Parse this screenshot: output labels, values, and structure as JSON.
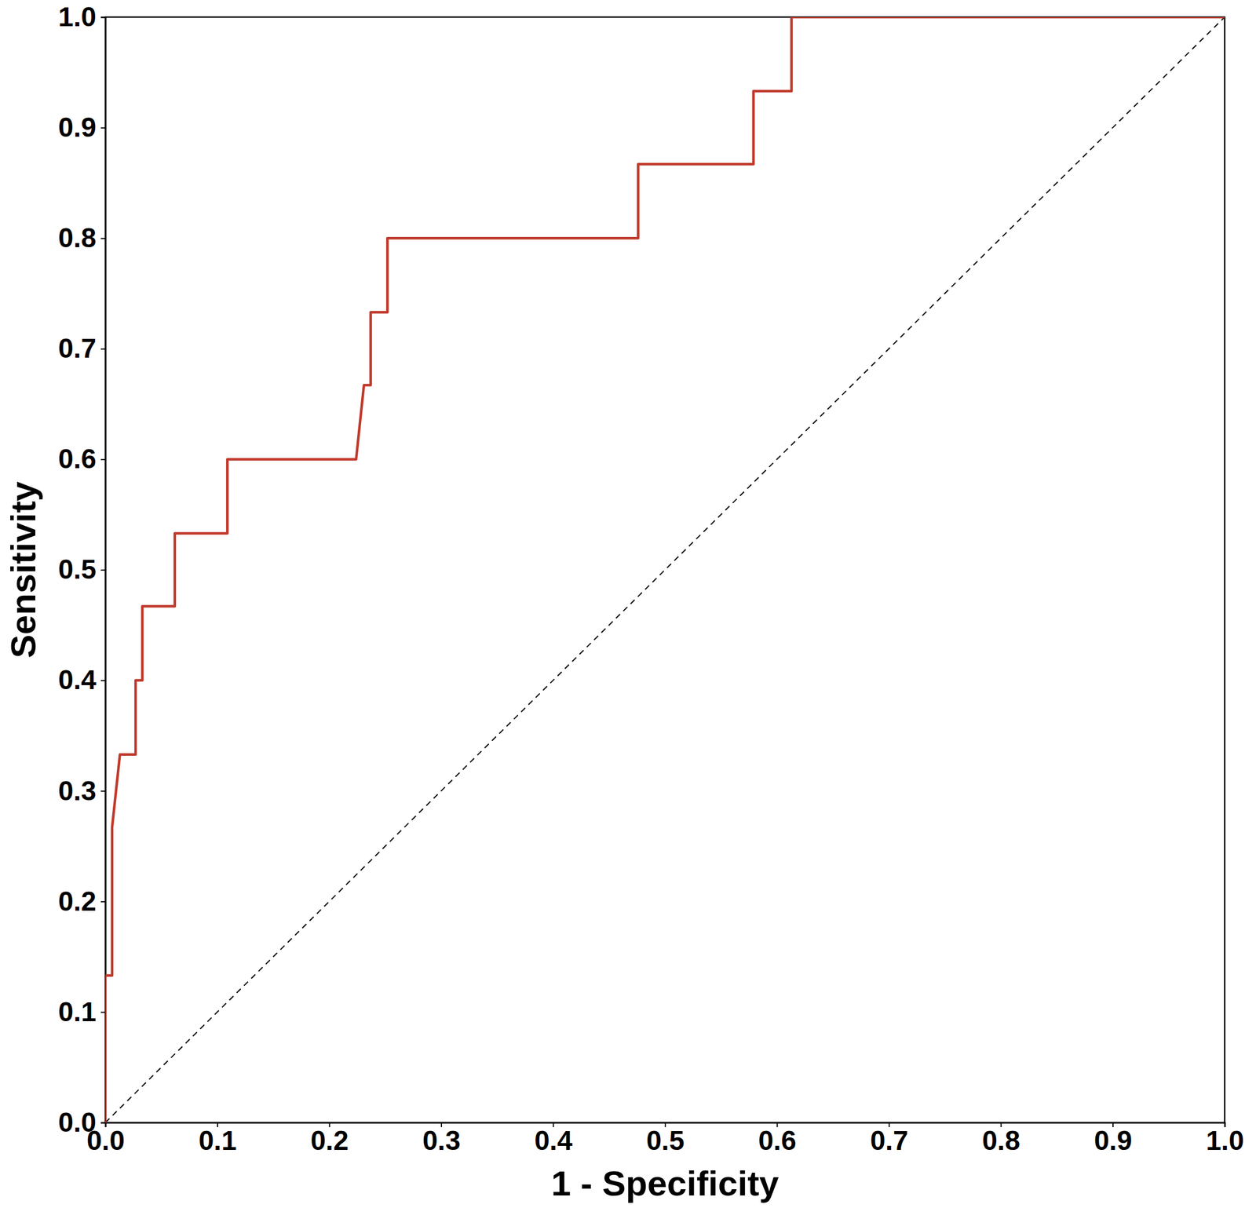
{
  "chart_data": {
    "type": "line",
    "x_label": "1 - Specificity",
    "y_label": "Sensitivity",
    "xlim": [
      0,
      1
    ],
    "ylim": [
      0,
      1
    ],
    "xticks": [
      {
        "value": 0,
        "label": "0.0"
      },
      0.1,
      0.2,
      0.3,
      0.4,
      0.5,
      0.6,
      0.7,
      0.8,
      0.9,
      {
        "value": 1,
        "label": "1.0"
      }
    ],
    "yticks": [
      {
        "value": 0,
        "label": "0.0"
      },
      0.1,
      0.2,
      0.3,
      0.4,
      0.5,
      0.6,
      0.7,
      0.8,
      0.9,
      {
        "value": 1,
        "label": "1.0"
      }
    ],
    "grid": false,
    "series": [
      {
        "color": "#c0392b",
        "line_style": "solid",
        "x": [
          0,
          0,
          0.006,
          0.006,
          0.013,
          0.027,
          0.027,
          0.033,
          0.033,
          0.062,
          0.062,
          0.109,
          0.109,
          0.224,
          0.231,
          0.237,
          0.237,
          0.252,
          0.252,
          0.476,
          0.476,
          0.579,
          0.579,
          0.613,
          0.613,
          1
        ],
        "values": [
          0,
          0.133,
          0.133,
          0.267,
          0.333,
          0.333,
          0.4,
          0.4,
          0.467,
          0.467,
          0.533,
          0.533,
          0.6,
          0.6,
          0.667,
          0.667,
          0.733,
          0.733,
          0.8,
          0.8,
          0.867,
          0.867,
          0.933,
          0.933,
          1,
          1
        ]
      },
      {
        "color": "#000000",
        "line_style": "dashed",
        "x": [
          0,
          1
        ],
        "values": [
          0,
          1
        ]
      }
    ]
  }
}
